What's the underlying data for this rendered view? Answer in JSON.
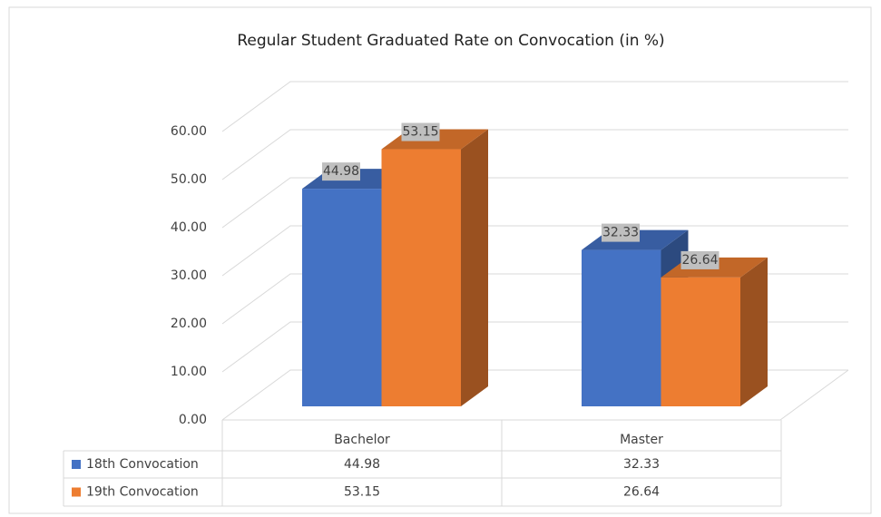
{
  "chart_data": {
    "type": "bar3d",
    "title": "Regular Student  Graduated Rate on Convocation (in %)",
    "categories": [
      "Bachelor",
      "Master"
    ],
    "series": [
      {
        "name": "18th Convocation",
        "color": "#4472c4",
        "values": [
          44.98,
          32.33
        ]
      },
      {
        "name": "19th Convocation",
        "color": "#ed7d31",
        "values": [
          53.15,
          26.64
        ]
      }
    ],
    "ylim": [
      0,
      60
    ],
    "yticks": [
      {
        "value": 0,
        "label": "0.00"
      },
      {
        "value": 10,
        "label": "10.00"
      },
      {
        "value": 20,
        "label": "20.00"
      },
      {
        "value": 30,
        "label": "30.00"
      },
      {
        "value": 40,
        "label": "40.00"
      },
      {
        "value": 50,
        "label": "50.00"
      },
      {
        "value": 60,
        "label": "60.00"
      }
    ],
    "grid": true,
    "data_table": true
  }
}
